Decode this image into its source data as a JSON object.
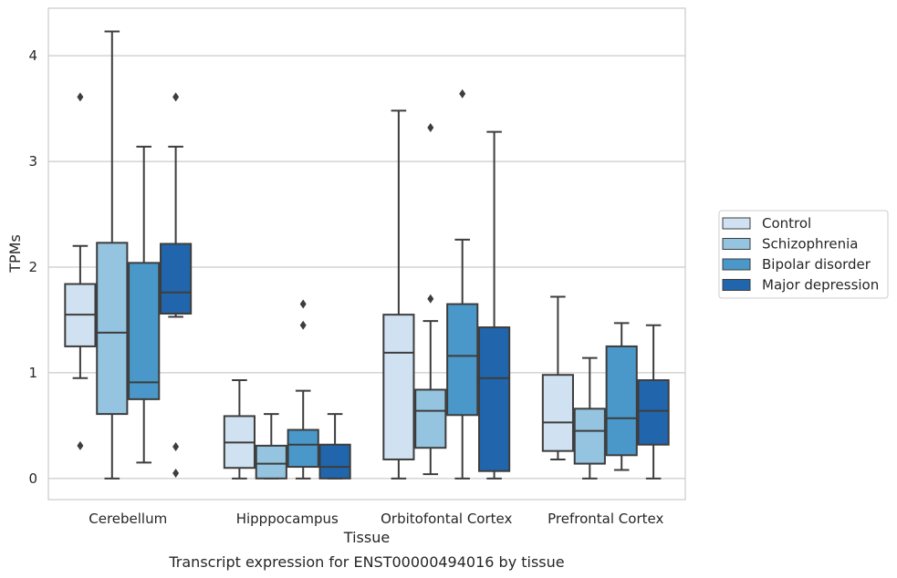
{
  "chart_data": {
    "type": "box",
    "title": "Transcript expression for ENST00000494016 by tissue",
    "xlabel": "Tissue",
    "ylabel": "TPMs",
    "ylim": [
      -0.2,
      4.45
    ],
    "yticks": [
      0,
      1,
      2,
      3,
      4
    ],
    "grid": "horizontal",
    "legend_position": "right",
    "categories": [
      "Cerebellum",
      "Hipppocampus",
      "Orbitofontal Cortex",
      "Prefrontal Cortex"
    ],
    "series": [
      {
        "name": "Control",
        "color": "#d0e1f2",
        "boxes": [
          {
            "whislo": 0.95,
            "q1": 1.25,
            "med": 1.55,
            "q3": 1.84,
            "whishi": 2.2,
            "fliers": [
              3.61,
              0.31
            ]
          },
          {
            "whislo": 0.0,
            "q1": 0.1,
            "med": 0.34,
            "q3": 0.59,
            "whishi": 0.93,
            "fliers": []
          },
          {
            "whislo": 0.0,
            "q1": 0.18,
            "med": 1.19,
            "q3": 1.55,
            "whishi": 3.48,
            "fliers": []
          },
          {
            "whislo": 0.18,
            "q1": 0.26,
            "med": 0.53,
            "q3": 0.98,
            "whishi": 1.72,
            "fliers": []
          }
        ]
      },
      {
        "name": "Schizophrenia",
        "color": "#94c4df",
        "boxes": [
          {
            "whislo": 0.0,
            "q1": 0.61,
            "med": 1.38,
            "q3": 2.23,
            "whishi": 4.23,
            "fliers": []
          },
          {
            "whislo": 0.0,
            "q1": 0.0,
            "med": 0.14,
            "q3": 0.31,
            "whishi": 0.61,
            "fliers": []
          },
          {
            "whislo": 0.04,
            "q1": 0.29,
            "med": 0.64,
            "q3": 0.84,
            "whishi": 1.49,
            "fliers": [
              3.32,
              1.7
            ]
          },
          {
            "whislo": 0.0,
            "q1": 0.14,
            "med": 0.45,
            "q3": 0.66,
            "whishi": 1.14,
            "fliers": []
          }
        ]
      },
      {
        "name": "Bipolar disorder",
        "color": "#4a98c9",
        "boxes": [
          {
            "whislo": 0.15,
            "q1": 0.75,
            "med": 0.91,
            "q3": 2.04,
            "whishi": 3.14,
            "fliers": []
          },
          {
            "whislo": 0.0,
            "q1": 0.11,
            "med": 0.32,
            "q3": 0.46,
            "whishi": 0.83,
            "fliers": [
              1.65,
              1.45
            ]
          },
          {
            "whislo": 0.0,
            "q1": 0.6,
            "med": 1.16,
            "q3": 1.65,
            "whishi": 2.26,
            "fliers": [
              3.64
            ]
          },
          {
            "whislo": 0.08,
            "q1": 0.22,
            "med": 0.57,
            "q3": 1.25,
            "whishi": 1.47,
            "fliers": []
          }
        ]
      },
      {
        "name": "Major depression",
        "color": "#2166ac",
        "boxes": [
          {
            "whislo": 1.53,
            "q1": 1.56,
            "med": 1.76,
            "q3": 2.22,
            "whishi": 3.14,
            "fliers": [
              3.61,
              0.3,
              0.05
            ]
          },
          {
            "whislo": 0.0,
            "q1": 0.0,
            "med": 0.11,
            "q3": 0.32,
            "whishi": 0.61,
            "fliers": []
          },
          {
            "whislo": 0.0,
            "q1": 0.07,
            "med": 0.95,
            "q3": 1.43,
            "whishi": 3.28,
            "fliers": []
          },
          {
            "whislo": 0.0,
            "q1": 0.32,
            "med": 0.64,
            "q3": 0.93,
            "whishi": 1.45,
            "fliers": []
          }
        ]
      }
    ]
  }
}
